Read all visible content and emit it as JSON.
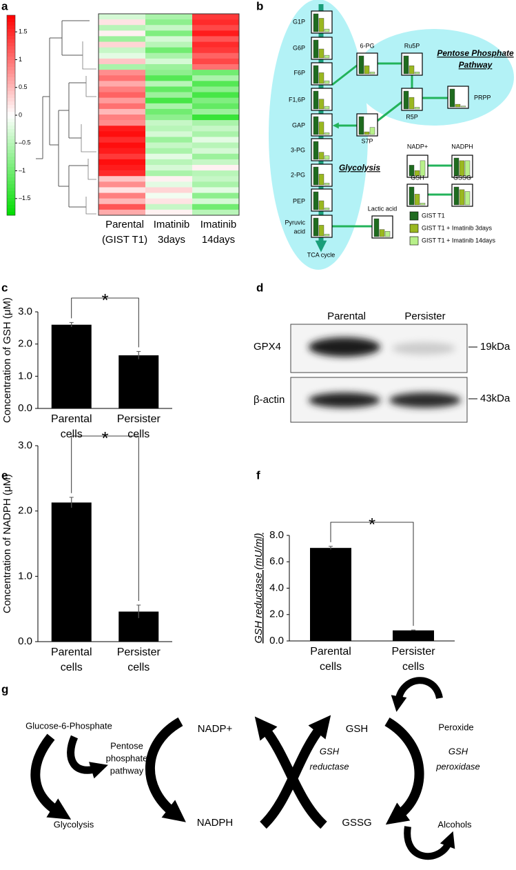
{
  "panel_letters": [
    "a",
    "b",
    "c",
    "d",
    "e",
    "f",
    "g"
  ],
  "chart_data": [
    {
      "type": "heatmap",
      "categories": [
        [
          "Parental",
          "(GIST T1)"
        ],
        [
          "Imatinib",
          "3days"
        ],
        [
          "Imatinib",
          "14days"
        ]
      ],
      "z": [
        [
          -0.3,
          -0.6,
          1.4
        ],
        [
          0.2,
          -0.8,
          1.5
        ],
        [
          -0.5,
          -0.4,
          1.3
        ],
        [
          0.1,
          -0.9,
          1.6
        ],
        [
          -0.7,
          -0.3,
          1.2
        ],
        [
          0.3,
          -0.5,
          1.5
        ],
        [
          -0.4,
          -1.0,
          1.4
        ],
        [
          -0.2,
          -0.6,
          1.1
        ],
        [
          0.4,
          -0.3,
          1.3
        ],
        [
          -0.6,
          -0.7,
          1.0
        ],
        [
          0.8,
          -0.8,
          -1.0
        ],
        [
          1.0,
          -1.2,
          -0.6
        ],
        [
          0.6,
          -0.5,
          -1.2
        ],
        [
          0.9,
          -1.1,
          -0.8
        ],
        [
          1.1,
          -0.7,
          -1.3
        ],
        [
          0.7,
          -1.3,
          -0.9
        ],
        [
          1.0,
          -0.6,
          -1.1
        ],
        [
          0.5,
          -1.0,
          -0.7
        ],
        [
          0.9,
          -0.8,
          -1.4
        ],
        [
          0.8,
          -0.4,
          -0.6
        ],
        [
          1.6,
          -0.5,
          -0.4
        ],
        [
          1.7,
          -0.3,
          -0.6
        ],
        [
          1.5,
          -0.7,
          -0.2
        ],
        [
          1.7,
          -0.4,
          -0.5
        ],
        [
          1.6,
          -0.6,
          -0.3
        ],
        [
          1.4,
          -0.2,
          -0.7
        ],
        [
          1.7,
          -0.5,
          -0.4
        ],
        [
          1.6,
          -0.3,
          0.1
        ],
        [
          1.5,
          -0.6,
          -0.5
        ],
        [
          0.4,
          0.1,
          -0.4
        ],
        [
          0.8,
          -0.2,
          -0.6
        ],
        [
          0.2,
          0.3,
          -0.2
        ],
        [
          0.9,
          -0.1,
          -0.8
        ],
        [
          0.5,
          0.2,
          -0.3
        ],
        [
          1.2,
          -0.4,
          -1.0
        ],
        [
          0.6,
          0.1,
          -0.5
        ]
      ],
      "zlim": [
        -1.8,
        1.8
      ],
      "zticks": [
        1.5,
        1,
        0.5,
        0,
        {
          "value": -0.5,
          "label": "–0.5"
        },
        {
          "value": -1,
          "label": "–1"
        },
        {
          "value": -1.5,
          "label": "–1.5"
        }
      ]
    },
    {
      "type": "bar",
      "ylabel": "Concentration of GSH (μM)",
      "categories": [
        [
          "Parental",
          "cells"
        ],
        [
          "Persister",
          "cells"
        ]
      ],
      "values": [
        2.6,
        1.65
      ],
      "errors": [
        0.07,
        0.12
      ],
      "color": "#000000",
      "ylim": [
        0,
        3
      ],
      "yticks": [
        {
          "value": 0,
          "label": "0.0"
        },
        {
          "value": 1,
          "label": "1.0"
        },
        {
          "value": 2,
          "label": "2.0"
        },
        {
          "value": 3,
          "label": "3.0"
        }
      ],
      "annotation": "*"
    },
    {
      "type": "bar",
      "ylabel": "Concentration of NADPH (μM)",
      "categories": [
        [
          "Parental",
          "cells"
        ],
        [
          "Persister",
          "cells"
        ]
      ],
      "values": [
        2.13,
        0.46
      ],
      "errors": [
        0.08,
        0.1
      ],
      "color": "#000000",
      "ylim": [
        0,
        3
      ],
      "yticks": [
        {
          "value": 0,
          "label": "0.0"
        },
        {
          "value": 1,
          "label": "1.0"
        },
        {
          "value": 2,
          "label": "2.0"
        },
        {
          "value": 3,
          "label": "3.0"
        }
      ],
      "annotation": "*"
    },
    {
      "type": "bar",
      "ylabel": "GSH reductase (mU/ml)",
      "categories": [
        [
          "Parental",
          "cells"
        ],
        [
          "Persister",
          "cells"
        ]
      ],
      "values": [
        7.05,
        0.8
      ],
      "errors": [
        0.12,
        0.03
      ],
      "color": "#000000",
      "ylim": [
        0,
        8
      ],
      "yticks": [
        {
          "value": 0,
          "label": "0.0"
        },
        {
          "value": 2,
          "label": "2.0"
        },
        {
          "value": 4,
          "label": "4.0"
        },
        {
          "value": 6,
          "label": "6.0"
        },
        {
          "value": 8,
          "label": "8.0"
        }
      ],
      "annotation": "*"
    }
  ],
  "pathway": {
    "series": [
      {
        "name": "GIST T1",
        "color": "#1f6b1f"
      },
      {
        "name": "GIST T1 + Imatinib 3days",
        "color": "#9ab820"
      },
      {
        "name": "GIST T1 + Imatinib 14days",
        "color": "#b8f08a"
      }
    ],
    "nodes": [
      {
        "label": [
          "G1P"
        ],
        "values": [
          1,
          0.75,
          0.15
        ]
      },
      {
        "label": [
          "G6P"
        ],
        "values": [
          1,
          0.5,
          0.15
        ]
      },
      {
        "label": [
          "F6P"
        ],
        "values": [
          1,
          0.6,
          0.15
        ]
      },
      {
        "label": [
          "F1,6P"
        ],
        "values": [
          1,
          0.55,
          0.15
        ]
      },
      {
        "label": [
          "GAP"
        ],
        "values": [
          1,
          0.7,
          0.1
        ]
      },
      {
        "label": [
          "3-PG"
        ],
        "values": [
          1,
          0.4,
          0.2
        ]
      },
      {
        "label": [
          "2-PG"
        ],
        "values": [
          1,
          0.6,
          0.1
        ]
      },
      {
        "label": [
          "PEP"
        ],
        "values": [
          1,
          0.5,
          0.1
        ]
      },
      {
        "label": [
          "Pyruvic",
          "acid"
        ],
        "values": [
          1,
          0.6,
          0.1
        ]
      },
      {
        "label": [
          "6-PG"
        ],
        "values": [
          1,
          0.45,
          0.1
        ]
      },
      {
        "label": [
          "Ru5P"
        ],
        "values": [
          1,
          0.45,
          0.1
        ]
      },
      {
        "label": [
          "R5P"
        ],
        "values": [
          1,
          0.65,
          0.1
        ]
      },
      {
        "label": [
          "S7P"
        ],
        "values": [
          1,
          0.15,
          0.4
        ]
      },
      {
        "label": [
          "PRPP"
        ],
        "values": [
          1,
          0.15,
          0.05
        ]
      },
      {
        "label": [
          "Lactic acid"
        ],
        "values": [
          1,
          0.4,
          0.3
        ]
      },
      {
        "label": [
          "NADP+"
        ],
        "values": [
          0.6,
          0.3,
          0.85
        ]
      },
      {
        "label": [
          "NADPH"
        ],
        "values": [
          1,
          0.85,
          0.85
        ]
      },
      {
        "label": [
          "GSH"
        ],
        "values": [
          1,
          0.6,
          0.1
        ]
      },
      {
        "label": [
          "GSSG"
        ],
        "values": [
          1,
          0.85,
          0.75
        ]
      }
    ],
    "pentose": [
      "Pentose Phosphate",
      "Pathway"
    ],
    "glycolysis": "Glycolysis",
    "tca": "TCA cycle"
  },
  "blot": {
    "lanes": [
      "Parental",
      "Persister"
    ],
    "rows": [
      {
        "label": "GPX4",
        "marker": "19kDa"
      },
      {
        "label": "β-actin",
        "marker": "43kDa"
      }
    ]
  },
  "scheme": {
    "g6p": "Glucose-6-Phosphate",
    "ppp": [
      "Pentose",
      "phosphate",
      "pathway"
    ],
    "glycolysis": "Glycolysis",
    "nadp": "NADP+",
    "nadph": "NADPH",
    "gsh_reductase": [
      "GSH",
      "reductase"
    ],
    "gsh": "GSH",
    "gssg": "GSSG",
    "gsh_peroxidase": [
      "GSH",
      "peroxidase"
    ],
    "peroxide": "Peroxide",
    "alcohols": "Alcohols"
  }
}
